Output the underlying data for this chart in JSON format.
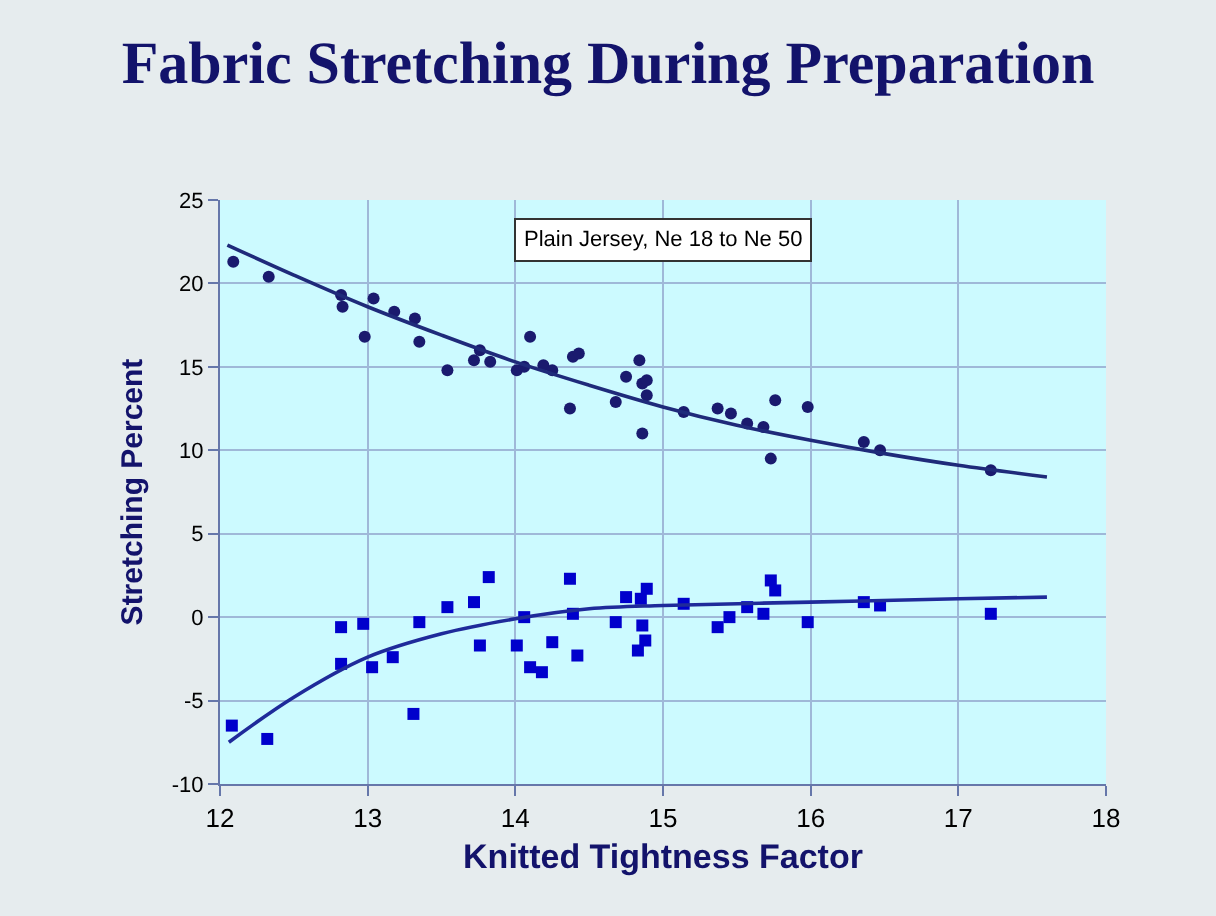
{
  "chart_data": {
    "type": "scatter",
    "title": "Fabric Stretching During Preparation",
    "xlabel": "Knitted Tightness Factor",
    "ylabel": "Stretching Percent",
    "annotations": [
      "Plain Jersey, Ne 18 to Ne 50"
    ],
    "xlim": [
      12,
      18
    ],
    "xticks": [
      12,
      13,
      14,
      15,
      16,
      17,
      18
    ],
    "ylim": [
      -10,
      25
    ],
    "yticks": [
      -10,
      -5,
      0,
      5,
      10,
      15,
      20,
      25
    ],
    "grid": true,
    "series": [
      {
        "marker": "circle",
        "color": "#1a1a6e",
        "x": [
          12.09,
          12.33,
          12.82,
          12.83,
          12.98,
          13.04,
          13.18,
          13.32,
          13.35,
          13.54,
          13.72,
          13.76,
          13.83,
          14.01,
          14.06,
          14.1,
          14.19,
          14.25,
          14.37,
          14.39,
          14.43,
          14.68,
          14.75,
          14.84,
          14.86,
          14.89,
          14.89,
          14.86,
          15.14,
          15.37,
          15.46,
          15.57,
          15.68,
          15.73,
          15.76,
          15.98,
          16.36,
          16.47,
          17.22
        ],
        "values": [
          21.3,
          20.4,
          19.3,
          18.6,
          16.8,
          19.1,
          18.3,
          17.9,
          16.5,
          14.8,
          15.4,
          16.0,
          15.3,
          14.8,
          15.0,
          16.8,
          15.1,
          14.8,
          12.5,
          15.6,
          15.8,
          12.9,
          14.4,
          15.4,
          14.0,
          14.2,
          13.3,
          11.0,
          12.3,
          12.5,
          12.2,
          11.6,
          11.4,
          9.5,
          13.0,
          12.6,
          10.5,
          10.0,
          8.8
        ]
      },
      {
        "marker": "square",
        "color": "#0000cc",
        "x": [
          12.08,
          12.32,
          12.82,
          12.82,
          12.97,
          13.03,
          13.17,
          13.31,
          13.35,
          13.54,
          13.72,
          13.76,
          13.82,
          14.01,
          14.06,
          14.1,
          14.18,
          14.25,
          14.37,
          14.39,
          14.42,
          14.68,
          14.75,
          14.85,
          14.89,
          14.86,
          14.83,
          14.88,
          15.14,
          15.37,
          15.45,
          15.57,
          15.68,
          15.73,
          15.76,
          15.98,
          16.36,
          16.47,
          17.22
        ],
        "values": [
          -6.5,
          -7.3,
          -0.6,
          -2.8,
          -0.4,
          -3.0,
          -2.4,
          -5.8,
          -0.3,
          0.6,
          0.9,
          -1.7,
          2.4,
          -1.7,
          0.0,
          -3.0,
          -3.3,
          -1.5,
          2.3,
          0.2,
          -2.3,
          -0.3,
          1.2,
          1.1,
          1.7,
          -0.5,
          -2.0,
          -1.4,
          0.8,
          -0.6,
          0.0,
          0.6,
          0.2,
          2.2,
          1.6,
          -0.3,
          0.9,
          0.7,
          0.2
        ]
      },
      {
        "type": "line",
        "marker": "none",
        "color": "#1f2a7a",
        "x": [
          12.05,
          12.5,
          13,
          13.5,
          14,
          14.5,
          15,
          15.5,
          16,
          16.5,
          17,
          17.6
        ],
        "values": [
          22.3,
          20.5,
          18.6,
          16.9,
          15.3,
          13.9,
          12.6,
          11.5,
          10.6,
          9.8,
          9.1,
          8.4
        ]
      },
      {
        "type": "line",
        "marker": "none",
        "color": "#1f2a9a",
        "x": [
          12.06,
          12.5,
          13,
          13.5,
          14,
          14.5,
          15,
          16,
          17,
          17.6
        ],
        "values": [
          -7.5,
          -4.8,
          -2.4,
          -1.0,
          -0.1,
          0.5,
          0.7,
          0.9,
          1.1,
          1.2
        ]
      }
    ]
  }
}
